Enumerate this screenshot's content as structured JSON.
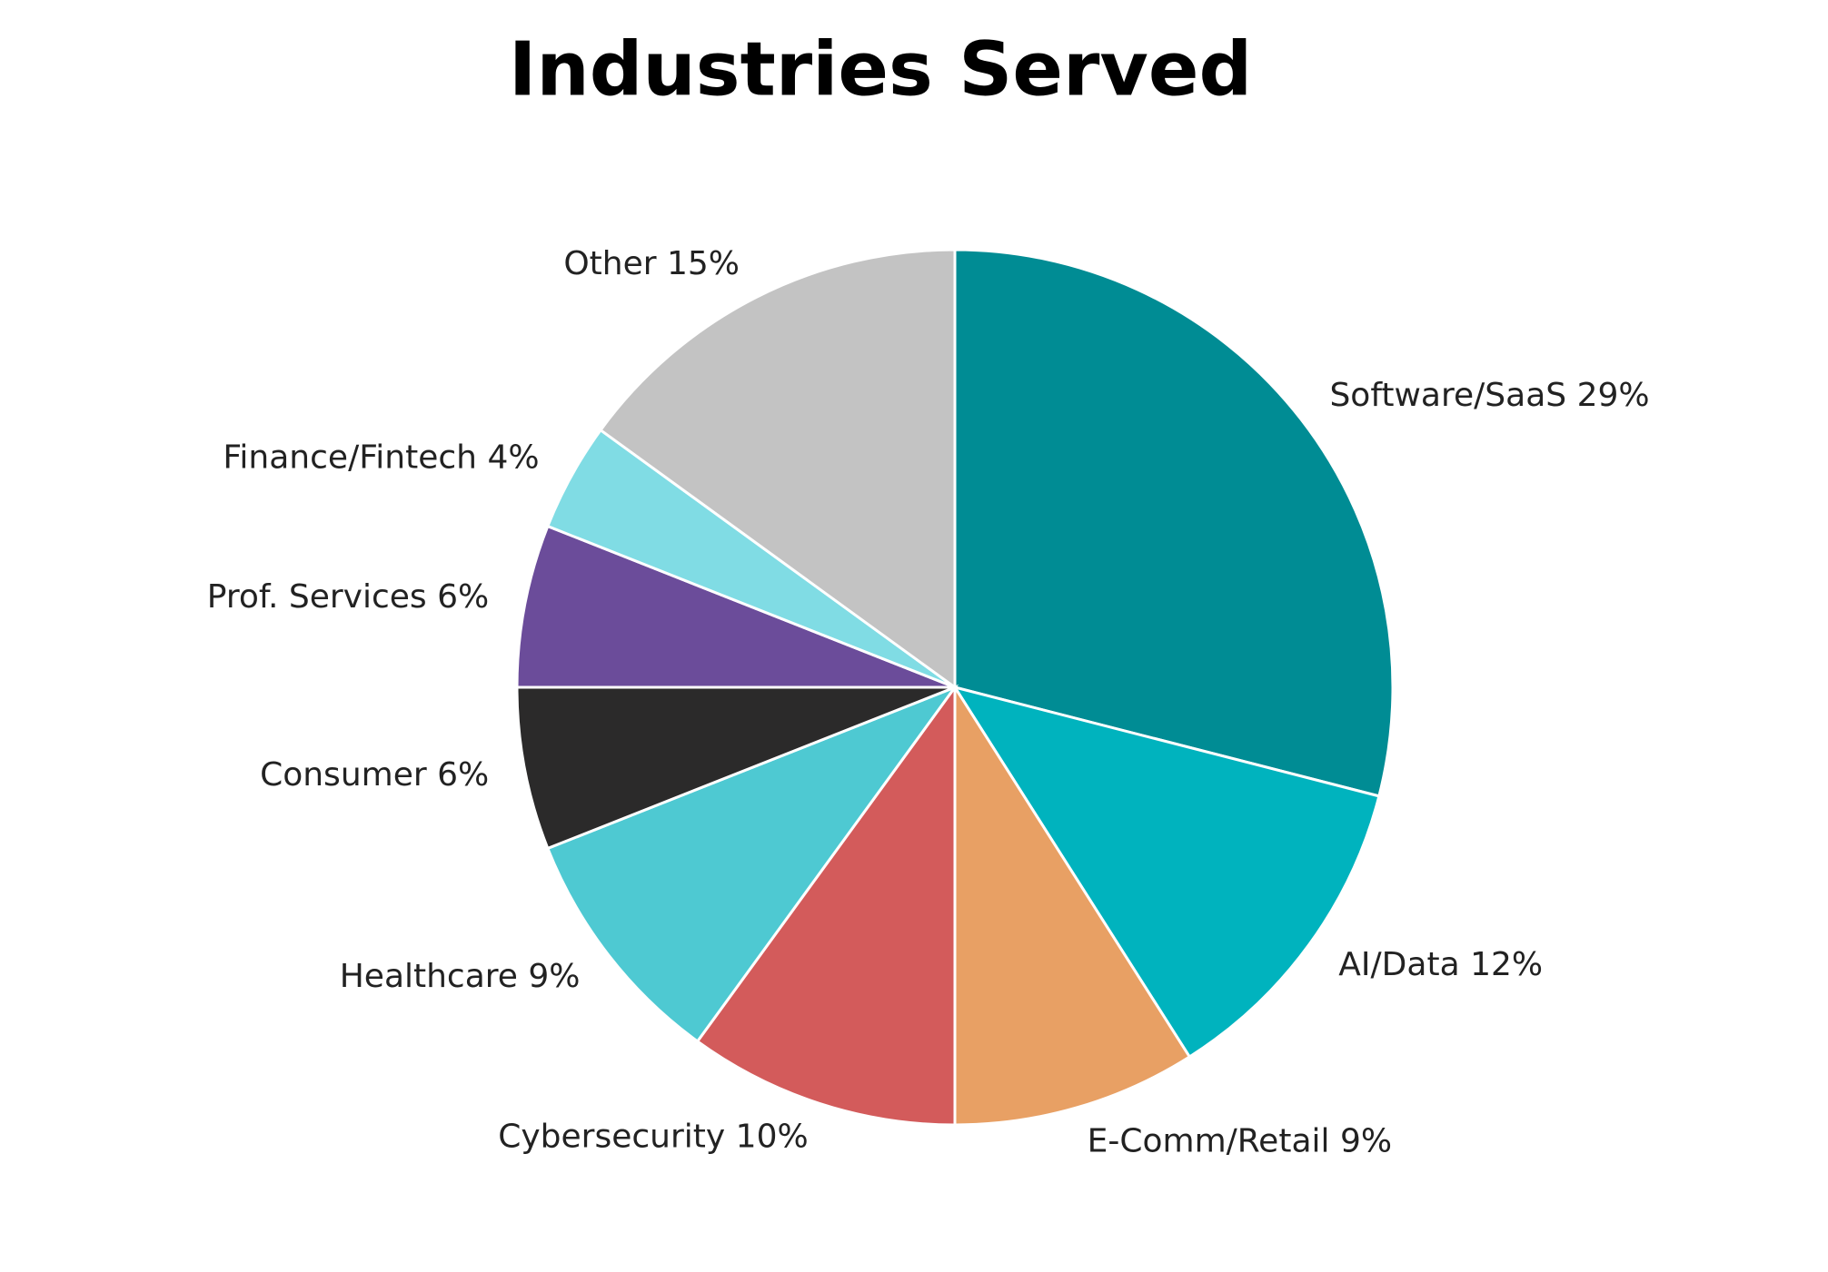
{
  "chart_data": {
    "type": "pie",
    "title": "Industries Served",
    "categories": [
      "Software/SaaS",
      "AI/Data",
      "E-Comm/Retail",
      "Cybersecurity",
      "Healthcare",
      "Consumer",
      "Prof. Services",
      "Finance/Fintech",
      "Other"
    ],
    "values": [
      29,
      12,
      9,
      10,
      9,
      6,
      6,
      4,
      15
    ],
    "value_labels": [
      "29%",
      "12%",
      "9%",
      "10%",
      "9%",
      "6%",
      "6%",
      "4%",
      "15%"
    ],
    "colors": [
      "#008c94",
      "#00b3be",
      "#e8a064",
      "#d35b5b",
      "#4ec9d2",
      "#2b2a2a",
      "#6b4c9a",
      "#80dce4",
      "#c3c3c3"
    ]
  }
}
